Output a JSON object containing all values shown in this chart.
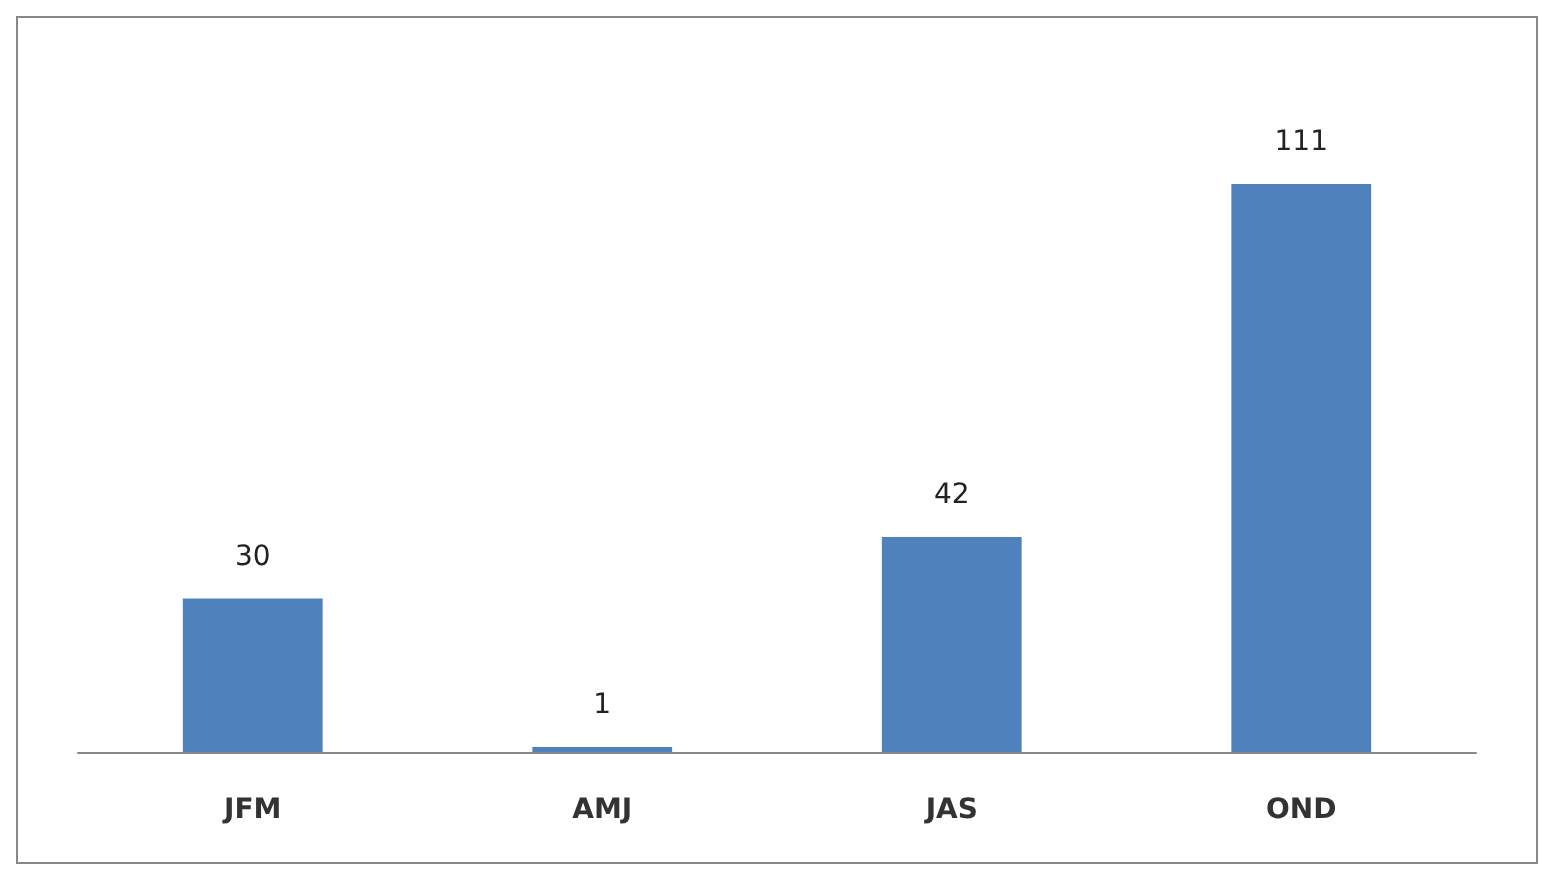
{
  "chart_data": {
    "type": "bar",
    "categories": [
      "JFM",
      "AMJ",
      "JAS",
      "OND"
    ],
    "values": [
      30,
      1,
      42,
      111
    ],
    "color": "#4f81bd",
    "data_labels": true
  }
}
